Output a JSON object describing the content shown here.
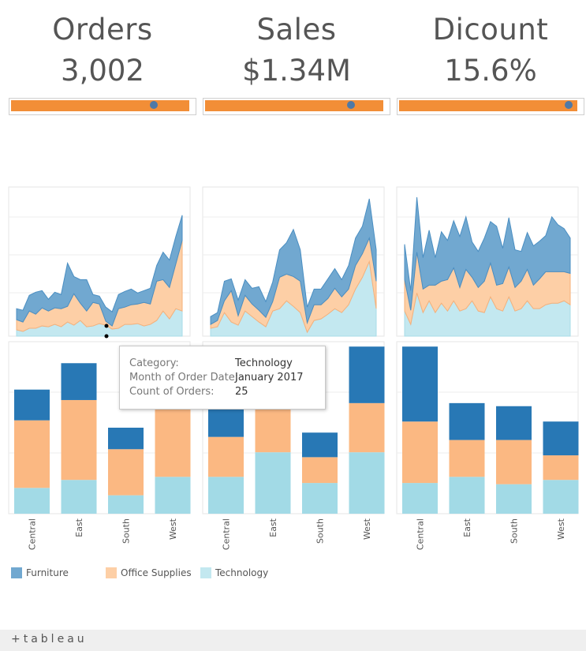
{
  "kpis": [
    {
      "title": "Orders",
      "value": "3,002",
      "progress": 0.8
    },
    {
      "title": "Sales",
      "value": "$1.34M",
      "progress": 0.82
    },
    {
      "title": "Dicount",
      "value": "15.6%",
      "progress": 0.95
    }
  ],
  "colors": {
    "furniture": "#2878b5",
    "office_supplies": "#fbb882",
    "technology": "#a2dae6",
    "area_furniture": "#71a8d0",
    "area_office": "#fdcfa6",
    "area_tech": "#c3e8f0",
    "kpi_bar": "#f28e37",
    "kpi_dot": "#4e79a7"
  },
  "legend": [
    {
      "label": "Furniture",
      "icon": "furniture-swatch",
      "color": "#71a8d0"
    },
    {
      "label": "Office Supplies",
      "icon": "office-supplies-swatch",
      "color": "#fdcfa6"
    },
    {
      "label": "Technology",
      "icon": "technology-swatch",
      "color": "#c3e8f0"
    }
  ],
  "tooltip": {
    "rows": [
      {
        "label": "Category:",
        "value": "Technology"
      },
      {
        "label": "Month of Order Date:",
        "value": "January 2017"
      },
      {
        "label": "Count of Orders:",
        "value": "25"
      }
    ]
  },
  "footer": {
    "brand": "+tableau"
  },
  "chart_data": [
    {
      "type": "area",
      "metric": "Orders",
      "stacked": true,
      "grid": true,
      "ylim": [
        0,
        190
      ],
      "series": [
        {
          "name": "Technology",
          "values": [
            8,
            6,
            10,
            10,
            13,
            12,
            15,
            12,
            18,
            14,
            20,
            12,
            13,
            16,
            14,
            9,
            10,
            15,
            15,
            16,
            13,
            15,
            20,
            32,
            22,
            35,
            32
          ]
        },
        {
          "name": "Office Supplies",
          "values": [
            13,
            12,
            22,
            18,
            23,
            20,
            21,
            23,
            20,
            40,
            22,
            20,
            30,
            25,
            5,
            4,
            25,
            22,
            25,
            25,
            30,
            26,
            50,
            40,
            40,
            57,
            90
          ]
        },
        {
          "name": "Furniture",
          "values": [
            14,
            15,
            20,
            28,
            22,
            15,
            20,
            18,
            55,
            22,
            30,
            40,
            10,
            10,
            18,
            18,
            18,
            20,
            20,
            14,
            15,
            20,
            20,
            35,
            35,
            35,
            32
          ]
        }
      ]
    },
    {
      "type": "area",
      "metric": "Sales",
      "stacked": true,
      "grid": true,
      "ylim": [
        0,
        190
      ],
      "series": [
        {
          "name": "Technology",
          "values": [
            10,
            12,
            30,
            18,
            14,
            32,
            25,
            18,
            12,
            32,
            35,
            45,
            38,
            30,
            5,
            20,
            22,
            28,
            35,
            30,
            40,
            60,
            75,
            95,
            35
          ]
        },
        {
          "name": "Office Supplies",
          "values": [
            5,
            8,
            15,
            40,
            12,
            20,
            16,
            15,
            12,
            12,
            40,
            34,
            38,
            40,
            12,
            20,
            18,
            20,
            26,
            20,
            20,
            30,
            30,
            30,
            35
          ]
        },
        {
          "name": "Furniture",
          "values": [
            10,
            10,
            25,
            15,
            20,
            20,
            20,
            30,
            20,
            25,
            35,
            40,
            60,
            40,
            20,
            20,
            20,
            25,
            25,
            22,
            30,
            35,
            35,
            50,
            40
          ]
        }
      ]
    },
    {
      "type": "area",
      "metric": "Dicount",
      "stacked": true,
      "grid": true,
      "ylim": [
        0,
        190
      ],
      "series": [
        {
          "name": "Technology",
          "values": [
            32,
            15,
            55,
            30,
            45,
            30,
            42,
            32,
            45,
            32,
            35,
            45,
            32,
            30,
            50,
            35,
            32,
            50,
            32,
            35,
            45,
            35,
            35,
            40,
            42,
            42,
            45,
            40
          ]
        },
        {
          "name": "Office Supplies",
          "values": [
            40,
            18,
            52,
            30,
            20,
            35,
            28,
            40,
            42,
            30,
            50,
            30,
            30,
            40,
            43,
            30,
            35,
            38,
            30,
            35,
            40,
            30,
            38,
            42,
            40,
            40,
            37,
            40
          ]
        },
        {
          "name": "Furniture",
          "values": [
            45,
            25,
            70,
            40,
            70,
            35,
            63,
            50,
            60,
            65,
            67,
            45,
            46,
            55,
            53,
            75,
            45,
            63,
            48,
            38,
            47,
            50,
            48,
            46,
            70,
            60,
            55,
            45
          ]
        }
      ]
    },
    {
      "type": "bar",
      "metric": "Orders",
      "stacked": true,
      "categories": [
        "Central",
        "East",
        "South",
        "West"
      ],
      "ylim": [
        0,
        280
      ],
      "series": [
        {
          "name": "Technology",
          "values": [
            42,
            55,
            30,
            60
          ]
        },
        {
          "name": "Office Supplies",
          "values": [
            110,
            130,
            75,
            120
          ]
        },
        {
          "name": "Furniture",
          "values": [
            50,
            60,
            35,
            40
          ]
        }
      ]
    },
    {
      "type": "bar",
      "metric": "Sales",
      "stacked": true,
      "categories": [
        "Central",
        "East",
        "South",
        "West"
      ],
      "ylim": [
        0,
        280
      ],
      "series": [
        {
          "name": "Technology",
          "values": [
            60,
            100,
            50,
            100
          ]
        },
        {
          "name": "Office Supplies",
          "values": [
            65,
            80,
            42,
            80
          ]
        },
        {
          "name": "Furniture",
          "values": [
            60,
            40,
            40,
            92
          ]
        }
      ]
    },
    {
      "type": "bar",
      "metric": "Dicount",
      "stacked": true,
      "categories": [
        "Central",
        "East",
        "South",
        "West"
      ],
      "ylim": [
        0,
        280
      ],
      "series": [
        {
          "name": "Technology",
          "values": [
            50,
            60,
            48,
            55
          ]
        },
        {
          "name": "Office Supplies",
          "values": [
            100,
            60,
            72,
            40
          ]
        },
        {
          "name": "Furniture",
          "values": [
            122,
            60,
            55,
            55
          ]
        }
      ]
    }
  ]
}
